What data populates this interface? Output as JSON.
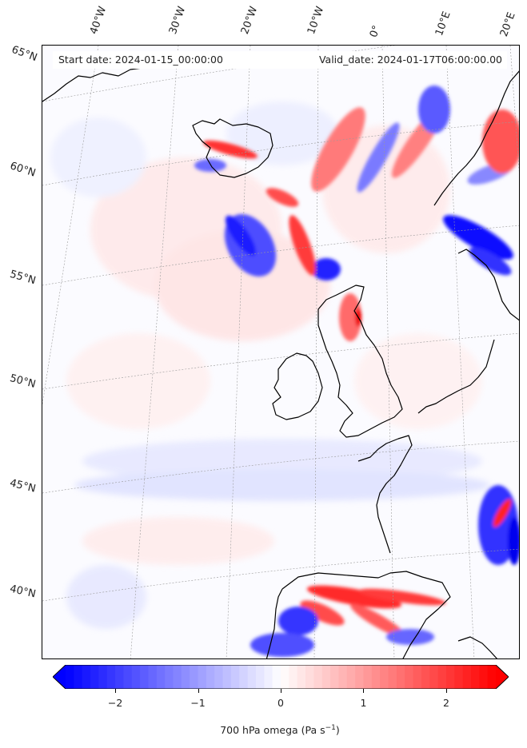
{
  "map": {
    "start_date": "Start date: 2024-01-15_00:00:00",
    "valid_date": "Valid_date: 2024-01-17T06:00:00.00",
    "lon_labels": [
      "40°W",
      "30°W",
      "20°W",
      "10°W",
      "0°",
      "10°E",
      "20°E"
    ],
    "lat_labels": [
      "65°N",
      "60°N",
      "55°N",
      "50°N",
      "45°N",
      "40°N"
    ]
  },
  "colorbar": {
    "label": "700 hPa omega (Pa s",
    "label_sup": "−1",
    "label_end": ")",
    "ticks": [
      "−2",
      "−1",
      "0",
      "1",
      "2"
    ],
    "tick_values": [
      -2,
      -1,
      0,
      1,
      2
    ],
    "range": [
      -2.6,
      2.6
    ],
    "colormap": "bwr",
    "negative_color": "#0000ff",
    "positive_color": "#ff0000",
    "extend": "both"
  },
  "colors": {
    "coast": "#000000",
    "grid": "#9a9a9a"
  }
}
